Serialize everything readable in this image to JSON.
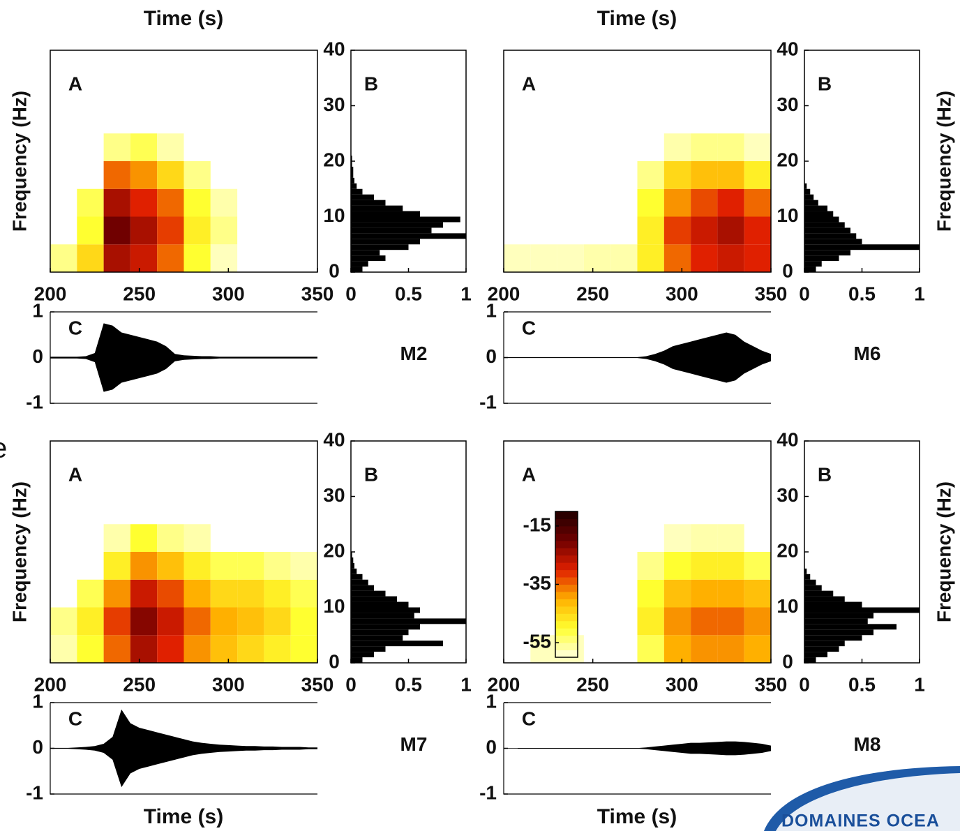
{
  "chart_data": [
    {
      "type": "spectrogram",
      "panel": "M2",
      "time_label": "Time (s)",
      "freq_label": "Frequency (Hz)",
      "label_a": "A",
      "label_b": "B",
      "label_c": "C",
      "xlim": [
        200,
        350
      ],
      "xticks": [
        200,
        250,
        300,
        350
      ],
      "ylim": [
        0,
        40
      ],
      "yticks": [
        0,
        10,
        20,
        30,
        40
      ],
      "clim": [
        -60,
        -10
      ],
      "colormap": [
        "#ffffe0",
        "#ffff30",
        "#ffb000",
        "#e02000",
        "#700000",
        "#200000"
      ],
      "spectrogram": {
        "time_edges": [
          200,
          215,
          230,
          245,
          260,
          275,
          290,
          305,
          320,
          335,
          350
        ],
        "freq_edges": [
          0,
          5,
          10,
          15,
          20,
          25
        ],
        "values": [
          [
            -55,
            -45,
            -25,
            -28,
            -35,
            -50,
            -58,
            null,
            null,
            null
          ],
          [
            null,
            -50,
            -20,
            -25,
            -32,
            -48,
            -55,
            null,
            null,
            null
          ],
          [
            null,
            -52,
            -25,
            -30,
            -35,
            -50,
            -57,
            null,
            null,
            null
          ],
          [
            null,
            null,
            -35,
            -38,
            -45,
            -55,
            null,
            null,
            null,
            null
          ],
          [
            null,
            null,
            -55,
            -52,
            -57,
            null,
            null,
            null,
            null,
            null
          ]
        ]
      },
      "histogram": {
        "color": "#000000",
        "xlim": [
          0,
          1
        ],
        "xticks": [
          0,
          0.5,
          1
        ],
        "bins": [
          0,
          1,
          2,
          3,
          4,
          5,
          6,
          7,
          8,
          9,
          10,
          11,
          12,
          13,
          14,
          15,
          16,
          17,
          18,
          19,
          20,
          21,
          22,
          23,
          24,
          25
        ],
        "values": [
          0.1,
          0.15,
          0.3,
          0.25,
          0.5,
          0.6,
          1.0,
          0.7,
          0.8,
          0.95,
          0.6,
          0.45,
          0.3,
          0.2,
          0.1,
          0.05,
          0.03,
          0.02,
          0.02,
          0.01,
          0.01,
          0,
          0,
          0,
          0
        ]
      },
      "waveform": {
        "color": "#000000",
        "ylim": [
          -1,
          1
        ],
        "yticks": [
          1,
          0,
          -1
        ],
        "x": [
          200,
          205,
          210,
          215,
          220,
          225,
          230,
          235,
          240,
          245,
          250,
          255,
          260,
          265,
          270,
          275,
          280,
          285,
          290,
          295,
          300,
          305,
          310,
          315,
          320,
          325,
          330,
          335,
          340,
          345,
          350
        ],
        "envelope": [
          0.02,
          0.02,
          0.02,
          0.02,
          0.03,
          0.1,
          0.75,
          0.7,
          0.55,
          0.5,
          0.45,
          0.4,
          0.35,
          0.25,
          0.08,
          0.05,
          0.04,
          0.03,
          0.03,
          0.02,
          0.02,
          0.02,
          0.02,
          0.02,
          0.02,
          0.02,
          0.02,
          0.02,
          0.02,
          0.02,
          0.02
        ]
      }
    },
    {
      "type": "spectrogram",
      "panel": "M6",
      "time_label": "Time (s)",
      "freq_label": "Frequency (Hz)",
      "label_a": "A",
      "label_b": "B",
      "label_c": "C",
      "xlim": [
        200,
        350
      ],
      "xticks": [
        200,
        250,
        300,
        350
      ],
      "ylim": [
        0,
        40
      ],
      "yticks": [
        0,
        10,
        20,
        30,
        40
      ],
      "clim": [
        -60,
        -10
      ],
      "colormap": [
        "#ffffe0",
        "#ffff30",
        "#ffb000",
        "#e02000",
        "#700000",
        "#200000"
      ],
      "spectrogram": {
        "time_edges": [
          200,
          215,
          230,
          245,
          260,
          275,
          290,
          305,
          320,
          335,
          350
        ],
        "freq_edges": [
          0,
          5,
          10,
          15,
          20,
          25
        ],
        "values": [
          [
            -58,
            -58,
            -58,
            -57,
            -57,
            -48,
            -35,
            -30,
            -28,
            -30
          ],
          [
            null,
            null,
            null,
            null,
            null,
            -48,
            -32,
            -28,
            -25,
            -30
          ],
          [
            null,
            null,
            null,
            null,
            null,
            -50,
            -38,
            -33,
            -30,
            -35
          ],
          [
            null,
            null,
            null,
            null,
            null,
            -55,
            -45,
            -42,
            -42,
            -48
          ],
          [
            null,
            null,
            null,
            null,
            null,
            null,
            -57,
            -55,
            -55,
            -58
          ]
        ]
      },
      "histogram": {
        "color": "#000000",
        "xlim": [
          0,
          1
        ],
        "xticks": [
          0,
          0.5,
          1
        ],
        "bins": [
          0,
          1,
          2,
          3,
          4,
          5,
          6,
          7,
          8,
          9,
          10,
          11,
          12,
          13,
          14,
          15,
          16,
          17,
          18,
          19,
          20,
          21,
          22,
          23,
          24,
          25
        ],
        "values": [
          0.1,
          0.15,
          0.3,
          0.4,
          1.0,
          0.5,
          0.45,
          0.4,
          0.35,
          0.3,
          0.25,
          0.2,
          0.12,
          0.08,
          0.05,
          0.02,
          0,
          0,
          0,
          0,
          0,
          0,
          0,
          0,
          0
        ]
      },
      "waveform": {
        "color": "#000000",
        "ylim": [
          -1,
          1
        ],
        "yticks": [
          1,
          0,
          -1
        ],
        "x": [
          200,
          205,
          210,
          215,
          220,
          225,
          230,
          235,
          240,
          245,
          250,
          255,
          260,
          265,
          270,
          275,
          280,
          285,
          290,
          295,
          300,
          305,
          310,
          315,
          320,
          325,
          330,
          335,
          340,
          345,
          350
        ],
        "envelope": [
          0.01,
          0.01,
          0.01,
          0.01,
          0.01,
          0.01,
          0.01,
          0.01,
          0.01,
          0.01,
          0.01,
          0.01,
          0.01,
          0.01,
          0.01,
          0.01,
          0.03,
          0.08,
          0.15,
          0.25,
          0.3,
          0.35,
          0.4,
          0.45,
          0.5,
          0.55,
          0.5,
          0.35,
          0.25,
          0.15,
          0.08
        ]
      }
    },
    {
      "type": "spectrogram",
      "panel": "M7",
      "time_label": "Time (s)",
      "freq_label": "Frequency (Hz)",
      "label_a": "A",
      "label_b": "B",
      "label_c": "C",
      "xlim": [
        200,
        350
      ],
      "xticks": [
        200,
        250,
        300,
        350
      ],
      "ylim": [
        0,
        40
      ],
      "yticks": [
        0,
        10,
        20,
        30,
        40
      ],
      "clim": [
        -60,
        -10
      ],
      "colormap": [
        "#ffffe0",
        "#ffff30",
        "#ffb000",
        "#e02000",
        "#700000",
        "#200000"
      ],
      "spectrogram": {
        "time_edges": [
          200,
          215,
          230,
          245,
          260,
          275,
          290,
          305,
          320,
          335,
          350
        ],
        "freq_edges": [
          0,
          5,
          10,
          15,
          20,
          25
        ],
        "values": [
          [
            -57,
            -50,
            -35,
            -25,
            -30,
            -38,
            -42,
            -45,
            -48,
            -50
          ],
          [
            -55,
            -48,
            -32,
            -22,
            -28,
            -35,
            -40,
            -42,
            -45,
            -50
          ],
          [
            null,
            -52,
            -38,
            -28,
            -33,
            -40,
            -45,
            -45,
            -48,
            -52
          ],
          [
            null,
            null,
            -48,
            -38,
            -42,
            -48,
            -52,
            -52,
            -55,
            -57
          ],
          [
            null,
            null,
            -57,
            -50,
            -55,
            -57,
            null,
            null,
            null,
            null
          ]
        ]
      },
      "histogram": {
        "color": "#000000",
        "xlim": [
          0,
          1
        ],
        "xticks": [
          0,
          0.5,
          1
        ],
        "bins": [
          0,
          1,
          2,
          3,
          4,
          5,
          6,
          7,
          8,
          9,
          10,
          11,
          12,
          13,
          14,
          15,
          16,
          17,
          18,
          19,
          20,
          21,
          22,
          23,
          24,
          25
        ],
        "values": [
          0.1,
          0.2,
          0.3,
          0.8,
          0.45,
          0.5,
          0.6,
          1.0,
          0.55,
          0.6,
          0.5,
          0.4,
          0.3,
          0.2,
          0.15,
          0.1,
          0.05,
          0.03,
          0.02,
          0.01,
          0,
          0,
          0,
          0,
          0
        ]
      },
      "waveform": {
        "color": "#000000",
        "ylim": [
          -1,
          1
        ],
        "yticks": [
          1,
          0,
          -1
        ],
        "x": [
          200,
          205,
          210,
          215,
          220,
          225,
          230,
          235,
          240,
          245,
          250,
          255,
          260,
          265,
          270,
          275,
          280,
          285,
          290,
          295,
          300,
          305,
          310,
          315,
          320,
          325,
          330,
          335,
          340,
          345,
          350
        ],
        "envelope": [
          0.01,
          0.01,
          0.01,
          0.02,
          0.03,
          0.05,
          0.1,
          0.25,
          0.85,
          0.55,
          0.45,
          0.4,
          0.35,
          0.3,
          0.25,
          0.2,
          0.15,
          0.12,
          0.1,
          0.08,
          0.07,
          0.06,
          0.05,
          0.05,
          0.04,
          0.04,
          0.03,
          0.03,
          0.03,
          0.02,
          0.02
        ]
      }
    },
    {
      "type": "spectrogram",
      "panel": "M8",
      "time_label": "Time (s)",
      "freq_label": "Frequency (Hz)",
      "label_a": "A",
      "label_b": "B",
      "label_c": "C",
      "xlim": [
        200,
        350
      ],
      "xticks": [
        200,
        250,
        300,
        350
      ],
      "ylim": [
        0,
        40
      ],
      "yticks": [
        0,
        10,
        20,
        30,
        40
      ],
      "clim": [
        -60,
        -10
      ],
      "colorbar_ticks": [
        -15,
        -35,
        -55
      ],
      "colormap": [
        "#ffffe0",
        "#ffff30",
        "#ffb000",
        "#e02000",
        "#700000",
        "#200000"
      ],
      "spectrogram": {
        "time_edges": [
          200,
          215,
          230,
          245,
          260,
          275,
          290,
          305,
          320,
          335,
          350
        ],
        "freq_edges": [
          0,
          5,
          10,
          15,
          20,
          25
        ],
        "values": [
          [
            null,
            -58,
            -58,
            null,
            null,
            -52,
            -40,
            -38,
            -38,
            -40
          ],
          [
            null,
            null,
            null,
            null,
            null,
            -48,
            -38,
            -35,
            -35,
            -38
          ],
          [
            null,
            null,
            null,
            null,
            null,
            -50,
            -42,
            -40,
            -40,
            -42
          ],
          [
            null,
            null,
            null,
            null,
            null,
            -55,
            -50,
            -48,
            -48,
            -52
          ],
          [
            null,
            null,
            null,
            null,
            null,
            null,
            -58,
            -57,
            -57,
            null
          ]
        ]
      },
      "histogram": {
        "color": "#000000",
        "xlim": [
          0,
          1
        ],
        "xticks": [
          0,
          0.5,
          1
        ],
        "bins": [
          0,
          1,
          2,
          3,
          4,
          5,
          6,
          7,
          8,
          9,
          10,
          11,
          12,
          13,
          14,
          15,
          16,
          17,
          18,
          19,
          20,
          21,
          22,
          23,
          24,
          25
        ],
        "values": [
          0.1,
          0.2,
          0.3,
          0.35,
          0.5,
          0.6,
          0.8,
          0.55,
          0.6,
          1.0,
          0.5,
          0.35,
          0.25,
          0.15,
          0.1,
          0.05,
          0.02,
          0,
          0,
          0,
          0,
          0,
          0,
          0,
          0
        ]
      },
      "waveform": {
        "color": "#000000",
        "ylim": [
          -1,
          1
        ],
        "yticks": [
          1,
          0,
          -1
        ],
        "x": [
          200,
          205,
          210,
          215,
          220,
          225,
          230,
          235,
          240,
          245,
          250,
          255,
          260,
          265,
          270,
          275,
          280,
          285,
          290,
          295,
          300,
          305,
          310,
          315,
          320,
          325,
          330,
          335,
          340,
          345,
          350
        ],
        "envelope": [
          0.005,
          0.005,
          0.005,
          0.005,
          0.005,
          0.005,
          0.005,
          0.005,
          0.005,
          0.005,
          0.005,
          0.005,
          0.005,
          0.005,
          0.005,
          0.005,
          0.02,
          0.04,
          0.06,
          0.08,
          0.1,
          0.12,
          0.12,
          0.13,
          0.14,
          0.15,
          0.15,
          0.14,
          0.12,
          0.1,
          0.06
        ]
      }
    }
  ],
  "edge_text": "e",
  "logo": "DOMAINES OCEA"
}
